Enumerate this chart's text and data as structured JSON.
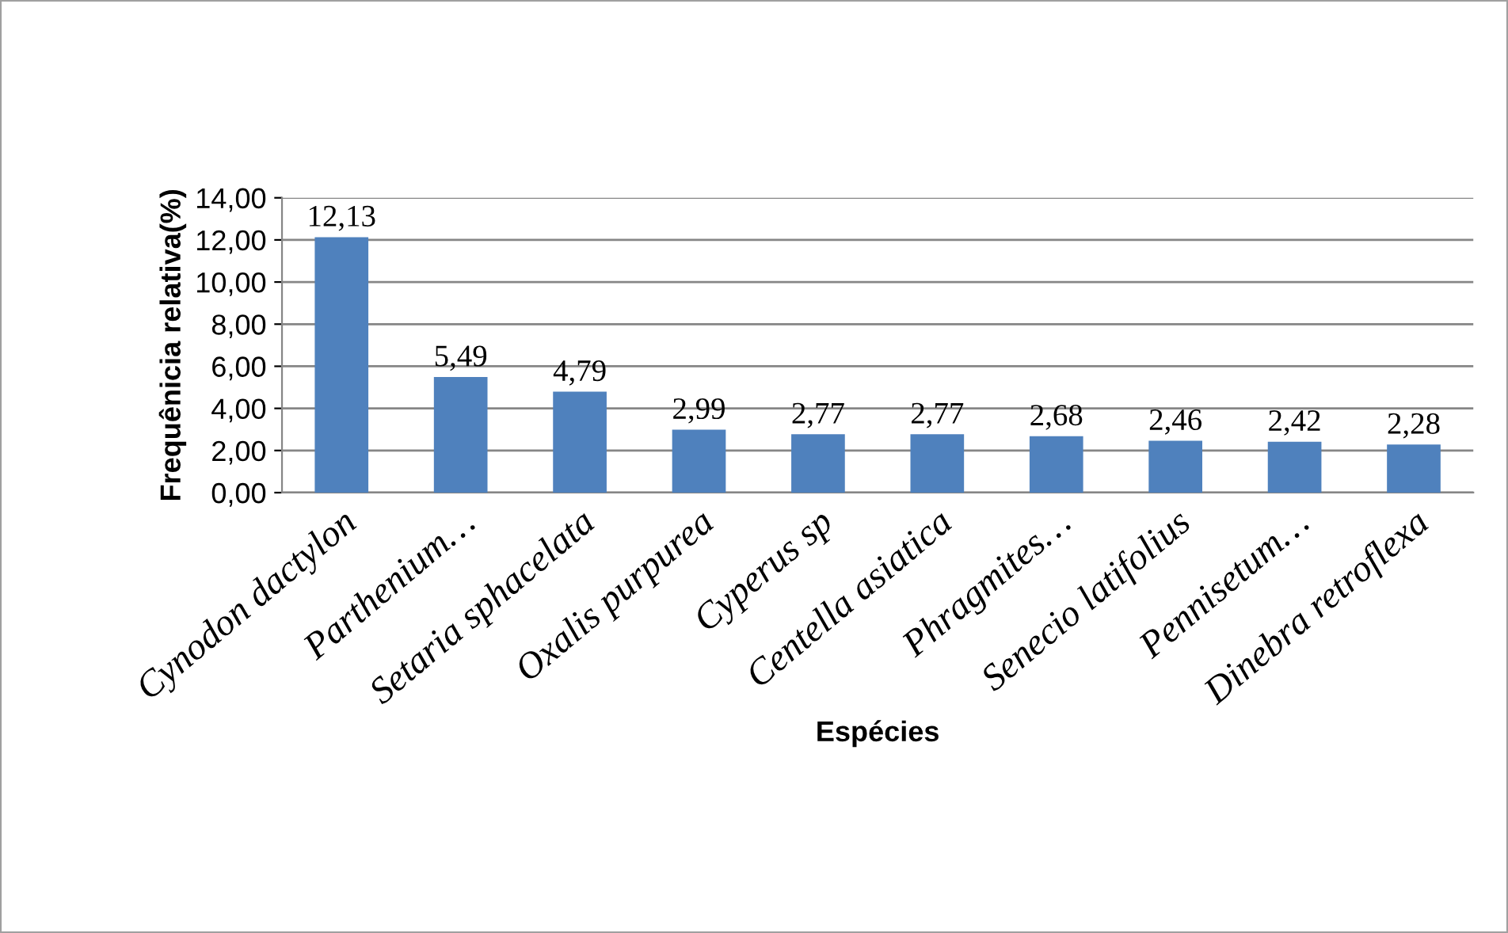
{
  "chart_data": {
    "type": "bar",
    "xlabel": "Espécies",
    "ylabel": "Frequênicia relativa(%)",
    "categories": [
      "Cynodon dactylon",
      "Parthenium…",
      "Setaria sphacelata",
      "Oxalis purpurea",
      "Cyperus sp",
      "Centella asiatica",
      "Phragmites…",
      "Senecio latifolius",
      "Pennisetum…",
      "Dinebra retroflexa"
    ],
    "values": [
      12.13,
      5.49,
      4.79,
      2.99,
      2.77,
      2.77,
      2.68,
      2.46,
      2.42,
      2.28
    ],
    "value_labels": [
      "12,13",
      "5,49",
      "4,79",
      "2,99",
      "2,77",
      "2,77",
      "2,68",
      "2,46",
      "2,42",
      "2,28"
    ],
    "color": "#4f81bd",
    "ylim": [
      0,
      14
    ],
    "yticks": [
      {
        "value": 0,
        "label": "0,00"
      },
      {
        "value": 2,
        "label": "2,00"
      },
      {
        "value": 4,
        "label": "4,00"
      },
      {
        "value": 6,
        "label": "6,00"
      },
      {
        "value": 8,
        "label": "8,00"
      },
      {
        "value": 10,
        "label": "10,00"
      },
      {
        "value": 12,
        "label": "12,00"
      },
      {
        "value": 14,
        "label": "14,00"
      }
    ],
    "grid": "y"
  }
}
